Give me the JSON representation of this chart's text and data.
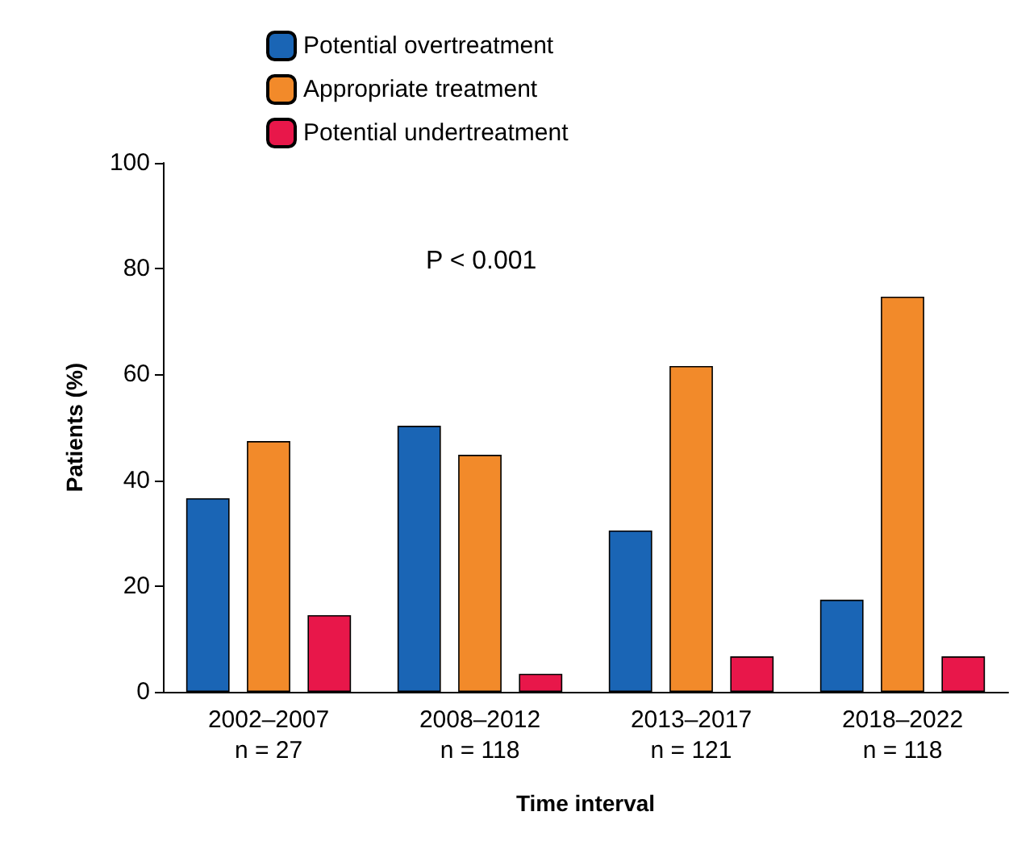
{
  "chart_data": {
    "type": "bar",
    "xlabel": "Time interval",
    "ylabel": "Patients (%)",
    "categories": [
      "2002–2007\nn = 27",
      "2008–2012\nn = 118",
      "2013–2017\nn = 121",
      "2018–2022\nn = 118"
    ],
    "series": [
      {
        "name": "Potential overtreatment",
        "color": "#1a65b5",
        "values": [
          36.6,
          50.3,
          30.5,
          17.4
        ]
      },
      {
        "name": "Appropriate treatment",
        "color": "#f28a2a",
        "values": [
          47.4,
          44.8,
          61.6,
          74.7
        ]
      },
      {
        "name": "Potential undertreatment",
        "color": "#e8174a",
        "values": [
          14.5,
          3.4,
          6.7,
          6.7
        ]
      }
    ],
    "ylim": [
      0,
      100
    ],
    "yticks": [
      0,
      20,
      40,
      60,
      80,
      100
    ],
    "grid": false,
    "legend": "top",
    "annotations": [
      "P < 0.001"
    ]
  }
}
